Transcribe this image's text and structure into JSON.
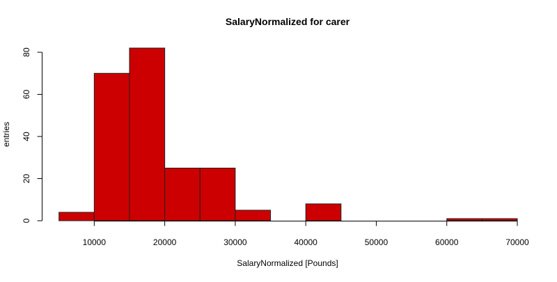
{
  "chart_data": {
    "type": "bar",
    "title": "SalaryNormalized for carer",
    "xlabel": "SalaryNormalized [Pounds]",
    "ylabel": "entries",
    "bins": [
      {
        "from": 5000,
        "to": 10000,
        "count": 4
      },
      {
        "from": 10000,
        "to": 15000,
        "count": 70
      },
      {
        "from": 15000,
        "to": 20000,
        "count": 82
      },
      {
        "from": 20000,
        "to": 25000,
        "count": 25
      },
      {
        "from": 25000,
        "to": 30000,
        "count": 25
      },
      {
        "from": 30000,
        "to": 35000,
        "count": 5
      },
      {
        "from": 35000,
        "to": 40000,
        "count": 0
      },
      {
        "from": 40000,
        "to": 45000,
        "count": 8
      },
      {
        "from": 45000,
        "to": 50000,
        "count": 0
      },
      {
        "from": 50000,
        "to": 55000,
        "count": 0
      },
      {
        "from": 55000,
        "to": 60000,
        "count": 0
      },
      {
        "from": 60000,
        "to": 65000,
        "count": 1
      },
      {
        "from": 65000,
        "to": 70000,
        "count": 1
      }
    ],
    "xlim": [
      5000,
      70000
    ],
    "ylim": [
      0,
      82
    ],
    "x_ticks": [
      10000,
      20000,
      30000,
      40000,
      50000,
      60000,
      70000
    ],
    "x_tick_labels": [
      "10000",
      "20000",
      "30000",
      "40000",
      "50000",
      "60000",
      "70000"
    ],
    "y_ticks": [
      0,
      20,
      40,
      60,
      80
    ],
    "y_tick_labels": [
      "0",
      "20",
      "40",
      "60",
      "80"
    ],
    "grid": false,
    "colors": {
      "bar_fill": "#cc0000",
      "bar_stroke": "#222222",
      "axis": "#000000"
    }
  }
}
